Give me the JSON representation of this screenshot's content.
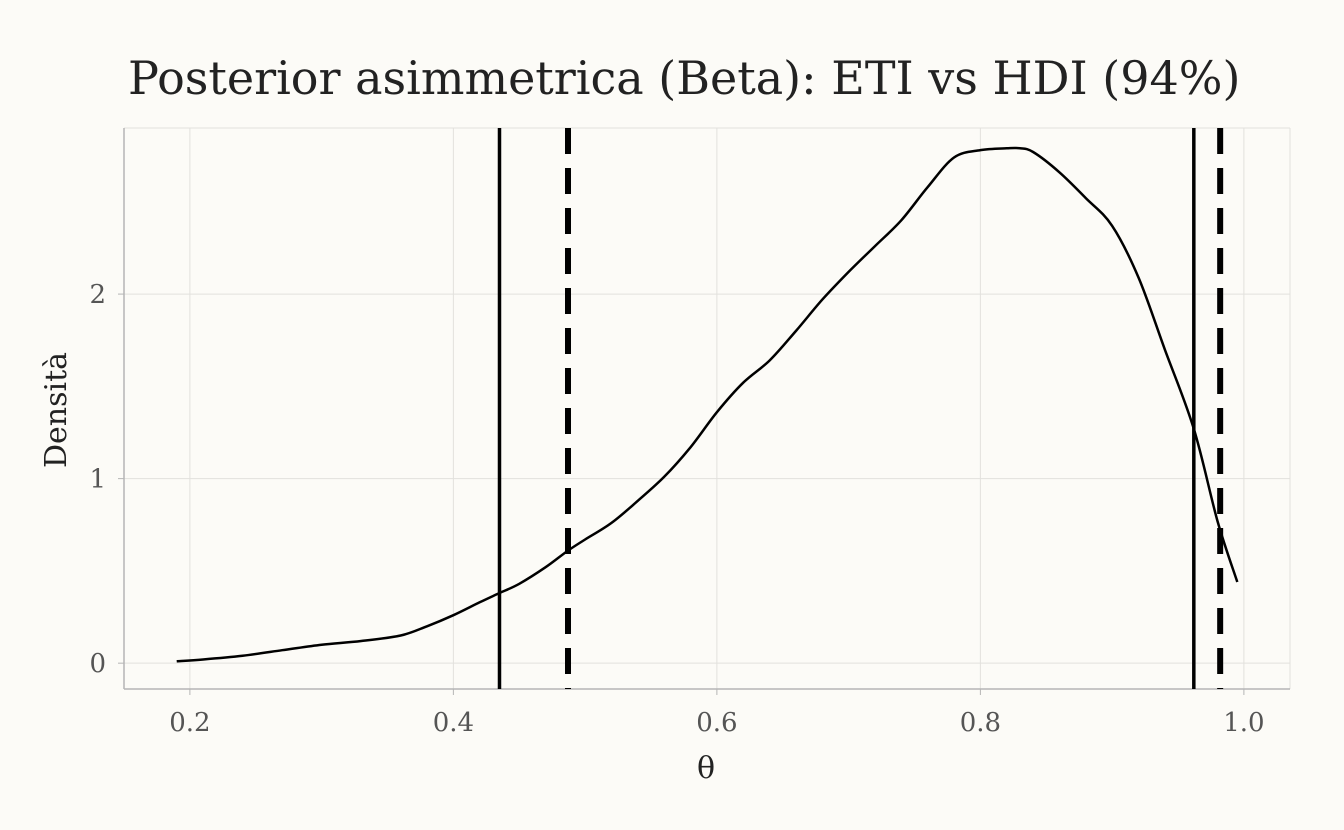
{
  "chart_data": {
    "type": "line",
    "title": "Posterior asimmetrica (Beta): ETI vs HDI (94%)",
    "xlabel": "θ",
    "ylabel": "Densità",
    "xlim": [
      0.15,
      1.035
    ],
    "ylim": [
      -0.14,
      2.9
    ],
    "x_ticks": [
      0.2,
      0.4,
      0.6,
      0.8,
      1.0
    ],
    "x_tick_labels": [
      "0.2",
      "0.4",
      "0.6",
      "0.8",
      "1.0"
    ],
    "y_ticks": [
      0,
      1,
      2
    ],
    "y_tick_labels": [
      "0",
      "1",
      "2"
    ],
    "grid": true,
    "series": [
      {
        "x": [
          0.19,
          0.21,
          0.24,
          0.27,
          0.3,
          0.33,
          0.36,
          0.38,
          0.4,
          0.42,
          0.435,
          0.45,
          0.47,
          0.487,
          0.5,
          0.52,
          0.54,
          0.56,
          0.58,
          0.6,
          0.62,
          0.64,
          0.66,
          0.68,
          0.7,
          0.72,
          0.74,
          0.76,
          0.78,
          0.8,
          0.82,
          0.83,
          0.84,
          0.86,
          0.88,
          0.9,
          0.92,
          0.94,
          0.962,
          0.98,
          0.995
        ],
        "y": [
          0.01,
          0.02,
          0.04,
          0.07,
          0.1,
          0.12,
          0.15,
          0.2,
          0.26,
          0.33,
          0.38,
          0.43,
          0.52,
          0.61,
          0.67,
          0.76,
          0.88,
          1.01,
          1.17,
          1.36,
          1.52,
          1.64,
          1.8,
          1.97,
          2.12,
          2.26,
          2.4,
          2.58,
          2.74,
          2.78,
          2.79,
          2.79,
          2.77,
          2.66,
          2.52,
          2.37,
          2.09,
          1.7,
          1.27,
          0.77,
          0.44
        ],
        "color": "#000000"
      }
    ],
    "vlines": [
      {
        "x": 0.435,
        "style": "solid"
      },
      {
        "x": 0.487,
        "style": "dashed"
      },
      {
        "x": 0.962,
        "style": "solid"
      },
      {
        "x": 0.982,
        "style": "dashed"
      }
    ],
    "colors": {
      "background": "#fcfbf7",
      "grid": "#e2e1dd",
      "axis": "#b5b5b5",
      "line": "#000000"
    }
  }
}
